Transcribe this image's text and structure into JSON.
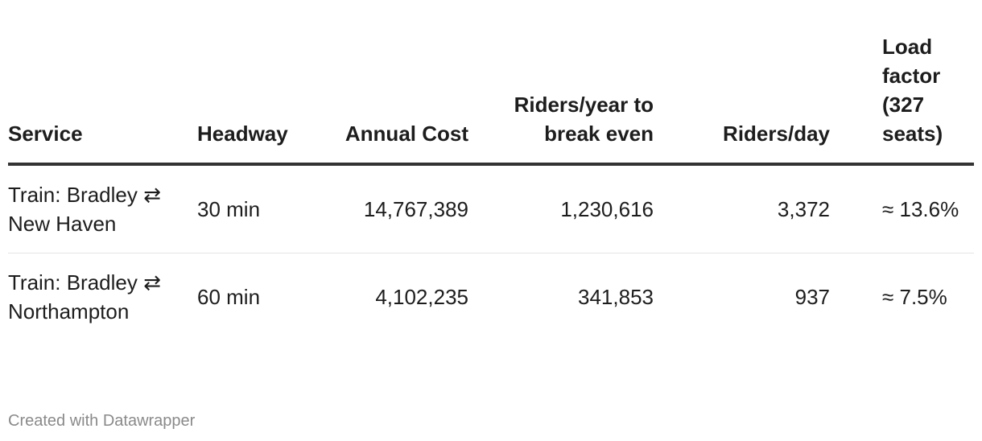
{
  "chart_data": {
    "type": "table",
    "columns": [
      {
        "key": "service",
        "label": "Service"
      },
      {
        "key": "headway",
        "label": "Headway"
      },
      {
        "key": "annual_cost",
        "label": "Annual Cost"
      },
      {
        "key": "riders_year",
        "label": "Riders/year to break even"
      },
      {
        "key": "riders_day",
        "label": "Riders/day"
      },
      {
        "key": "load_factor",
        "label": "Load factor (327 seats)"
      }
    ],
    "rows": [
      {
        "service": "Train: Bradley ⇄ New Haven",
        "headway": "30 min",
        "annual_cost": "14,767,389",
        "riders_year": "1,230,616",
        "riders_day": "3,372",
        "load_factor": "≈ 13.6%"
      },
      {
        "service": "Train: Bradley ⇄ Northampton",
        "headway": "60 min",
        "annual_cost": "4,102,235",
        "riders_year": "341,853",
        "riders_day": "937",
        "load_factor": "≈ 7.5%"
      }
    ]
  },
  "footer": "Created with Datawrapper"
}
